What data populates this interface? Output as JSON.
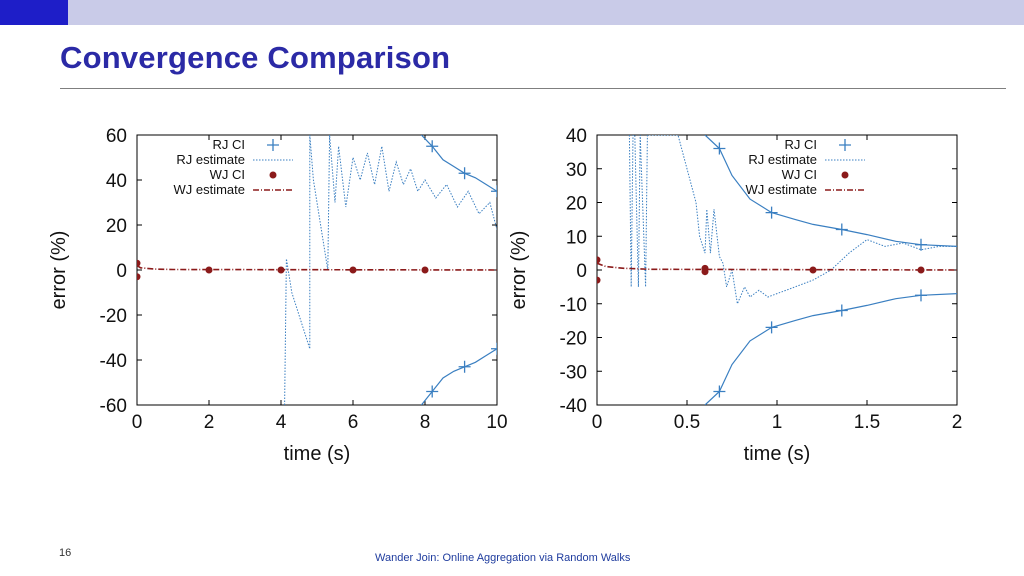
{
  "slide": {
    "title": "Convergence Comparison",
    "number": "16",
    "footer": "Wander Join: Online Aggregation via Random Walks"
  },
  "colors": {
    "band": "#c9cbe8",
    "accent": "#1e1ec8",
    "title": "#2b2aa6",
    "rj": "#3a7fc1",
    "wj": "#8b1a1a"
  },
  "chart_data": [
    {
      "type": "line",
      "xlabel": "time (s)",
      "ylabel": "error (%)",
      "xlim": [
        0,
        10
      ],
      "ylim": [
        -60,
        60
      ],
      "xticks": [
        0,
        2,
        4,
        6,
        8,
        10
      ],
      "yticks": [
        -60,
        -40,
        -20,
        0,
        20,
        40,
        60
      ],
      "grid": false,
      "legend_position": "top-left",
      "legend": [
        "RJ CI",
        "RJ estimate",
        "WJ CI",
        "WJ estimate"
      ],
      "series": [
        {
          "name": "RJ CI",
          "style": "solid-plus",
          "color": "#3a7fc1",
          "x": [
            7.9,
            8.2,
            8.5,
            8.8,
            9.1,
            9.4,
            9.7,
            10
          ],
          "y": [
            60,
            55,
            49,
            46,
            43,
            41,
            38,
            35
          ]
        },
        {
          "name": "RJ CI",
          "style": "solid-plus",
          "color": "#3a7fc1",
          "x": [
            7.9,
            8.2,
            8.5,
            8.8,
            9.1,
            9.4,
            9.7,
            10
          ],
          "y": [
            -60,
            -54,
            -48,
            -45,
            -43,
            -41,
            -38,
            -35
          ]
        },
        {
          "name": "RJ estimate",
          "style": "dotted",
          "color": "#3a7fc1",
          "x": [
            4.1,
            4.15,
            4.3,
            4.6,
            4.8,
            4.8,
            4.9,
            5.1,
            5.3,
            5.35,
            5.5,
            5.6,
            5.8,
            6.0,
            6.2,
            6.4,
            6.6,
            6.8,
            7.0,
            7.2,
            7.4,
            7.6,
            7.8,
            8.0,
            8.3,
            8.6,
            8.9,
            9.2,
            9.5,
            9.8,
            10
          ],
          "y": [
            -60,
            5,
            -10,
            -25,
            -35,
            60,
            40,
            20,
            0,
            60,
            30,
            55,
            28,
            50,
            40,
            52,
            38,
            55,
            35,
            48,
            38,
            45,
            35,
            40,
            32,
            38,
            28,
            35,
            25,
            30,
            18
          ]
        },
        {
          "name": "WJ CI",
          "style": "dots",
          "color": "#8b1a1a",
          "x": [
            0,
            0,
            2,
            4,
            6,
            8
          ],
          "y": [
            3,
            -3,
            0,
            0,
            0,
            0
          ]
        },
        {
          "name": "WJ estimate",
          "style": "dashdot",
          "color": "#8b1a1a",
          "x": [
            0,
            0.1,
            0.5,
            1,
            10
          ],
          "y": [
            2,
            1,
            0.4,
            0.2,
            0
          ]
        }
      ]
    },
    {
      "type": "line",
      "xlabel": "time (s)",
      "ylabel": "error (%)",
      "xlim": [
        0,
        2
      ],
      "ylim": [
        -40,
        40
      ],
      "xticks": [
        0,
        0.5,
        1,
        1.5,
        2
      ],
      "yticks": [
        -40,
        -30,
        -20,
        -10,
        0,
        10,
        20,
        30,
        40
      ],
      "grid": false,
      "legend_position": "top-right",
      "legend": [
        "RJ CI",
        "RJ estimate",
        "WJ CI",
        "WJ estimate"
      ],
      "series": [
        {
          "name": "RJ CI",
          "style": "solid-plus",
          "color": "#3a7fc1",
          "x": [
            0.6,
            0.68,
            0.75,
            0.85,
            0.97,
            1.1,
            1.2,
            1.36,
            1.5,
            1.66,
            1.8,
            2
          ],
          "y": [
            40,
            36,
            28,
            21,
            17,
            15,
            13.5,
            12,
            10.5,
            8.5,
            7.5,
            7
          ]
        },
        {
          "name": "RJ CI",
          "style": "solid-plus",
          "color": "#3a7fc1",
          "x": [
            0.6,
            0.68,
            0.75,
            0.85,
            0.97,
            1.1,
            1.2,
            1.36,
            1.5,
            1.66,
            1.8,
            2
          ],
          "y": [
            -40,
            -36,
            -28,
            -21,
            -17,
            -15,
            -13.5,
            -12,
            -10.5,
            -8.5,
            -7.5,
            -7
          ]
        },
        {
          "name": "RJ estimate",
          "style": "dotted",
          "color": "#3a7fc1",
          "x": [
            0.18,
            0.19,
            0.2,
            0.21,
            0.23,
            0.24,
            0.27,
            0.28,
            0.3,
            0.32,
            0.45,
            0.5,
            0.55,
            0.57,
            0.6,
            0.61,
            0.63,
            0.65,
            0.68,
            0.7,
            0.72,
            0.75,
            0.78,
            0.82,
            0.85,
            0.9,
            0.95,
            1.0,
            1.05,
            1.1,
            1.2,
            1.3,
            1.4,
            1.5,
            1.6,
            1.7,
            1.8,
            1.9,
            2
          ],
          "y": [
            40,
            -5,
            40,
            40,
            -5,
            40,
            -5,
            40,
            40,
            40,
            40,
            30,
            20,
            10,
            5,
            18,
            5,
            18,
            4,
            2,
            -5,
            0,
            -10,
            -5,
            -8,
            -6,
            -8,
            -7,
            -6,
            -5,
            -3,
            0,
            5,
            9,
            7,
            8,
            6,
            7,
            7
          ]
        },
        {
          "name": "WJ CI",
          "style": "dots",
          "color": "#8b1a1a",
          "x": [
            0,
            0,
            0.6,
            0.6,
            1.2,
            1.8
          ],
          "y": [
            3,
            -3,
            0.5,
            -0.5,
            0,
            0
          ]
        },
        {
          "name": "WJ estimate",
          "style": "dashdot",
          "color": "#8b1a1a",
          "x": [
            0,
            0.05,
            0.15,
            0.3,
            2
          ],
          "y": [
            2,
            1,
            0.5,
            0.2,
            0
          ]
        }
      ]
    }
  ]
}
